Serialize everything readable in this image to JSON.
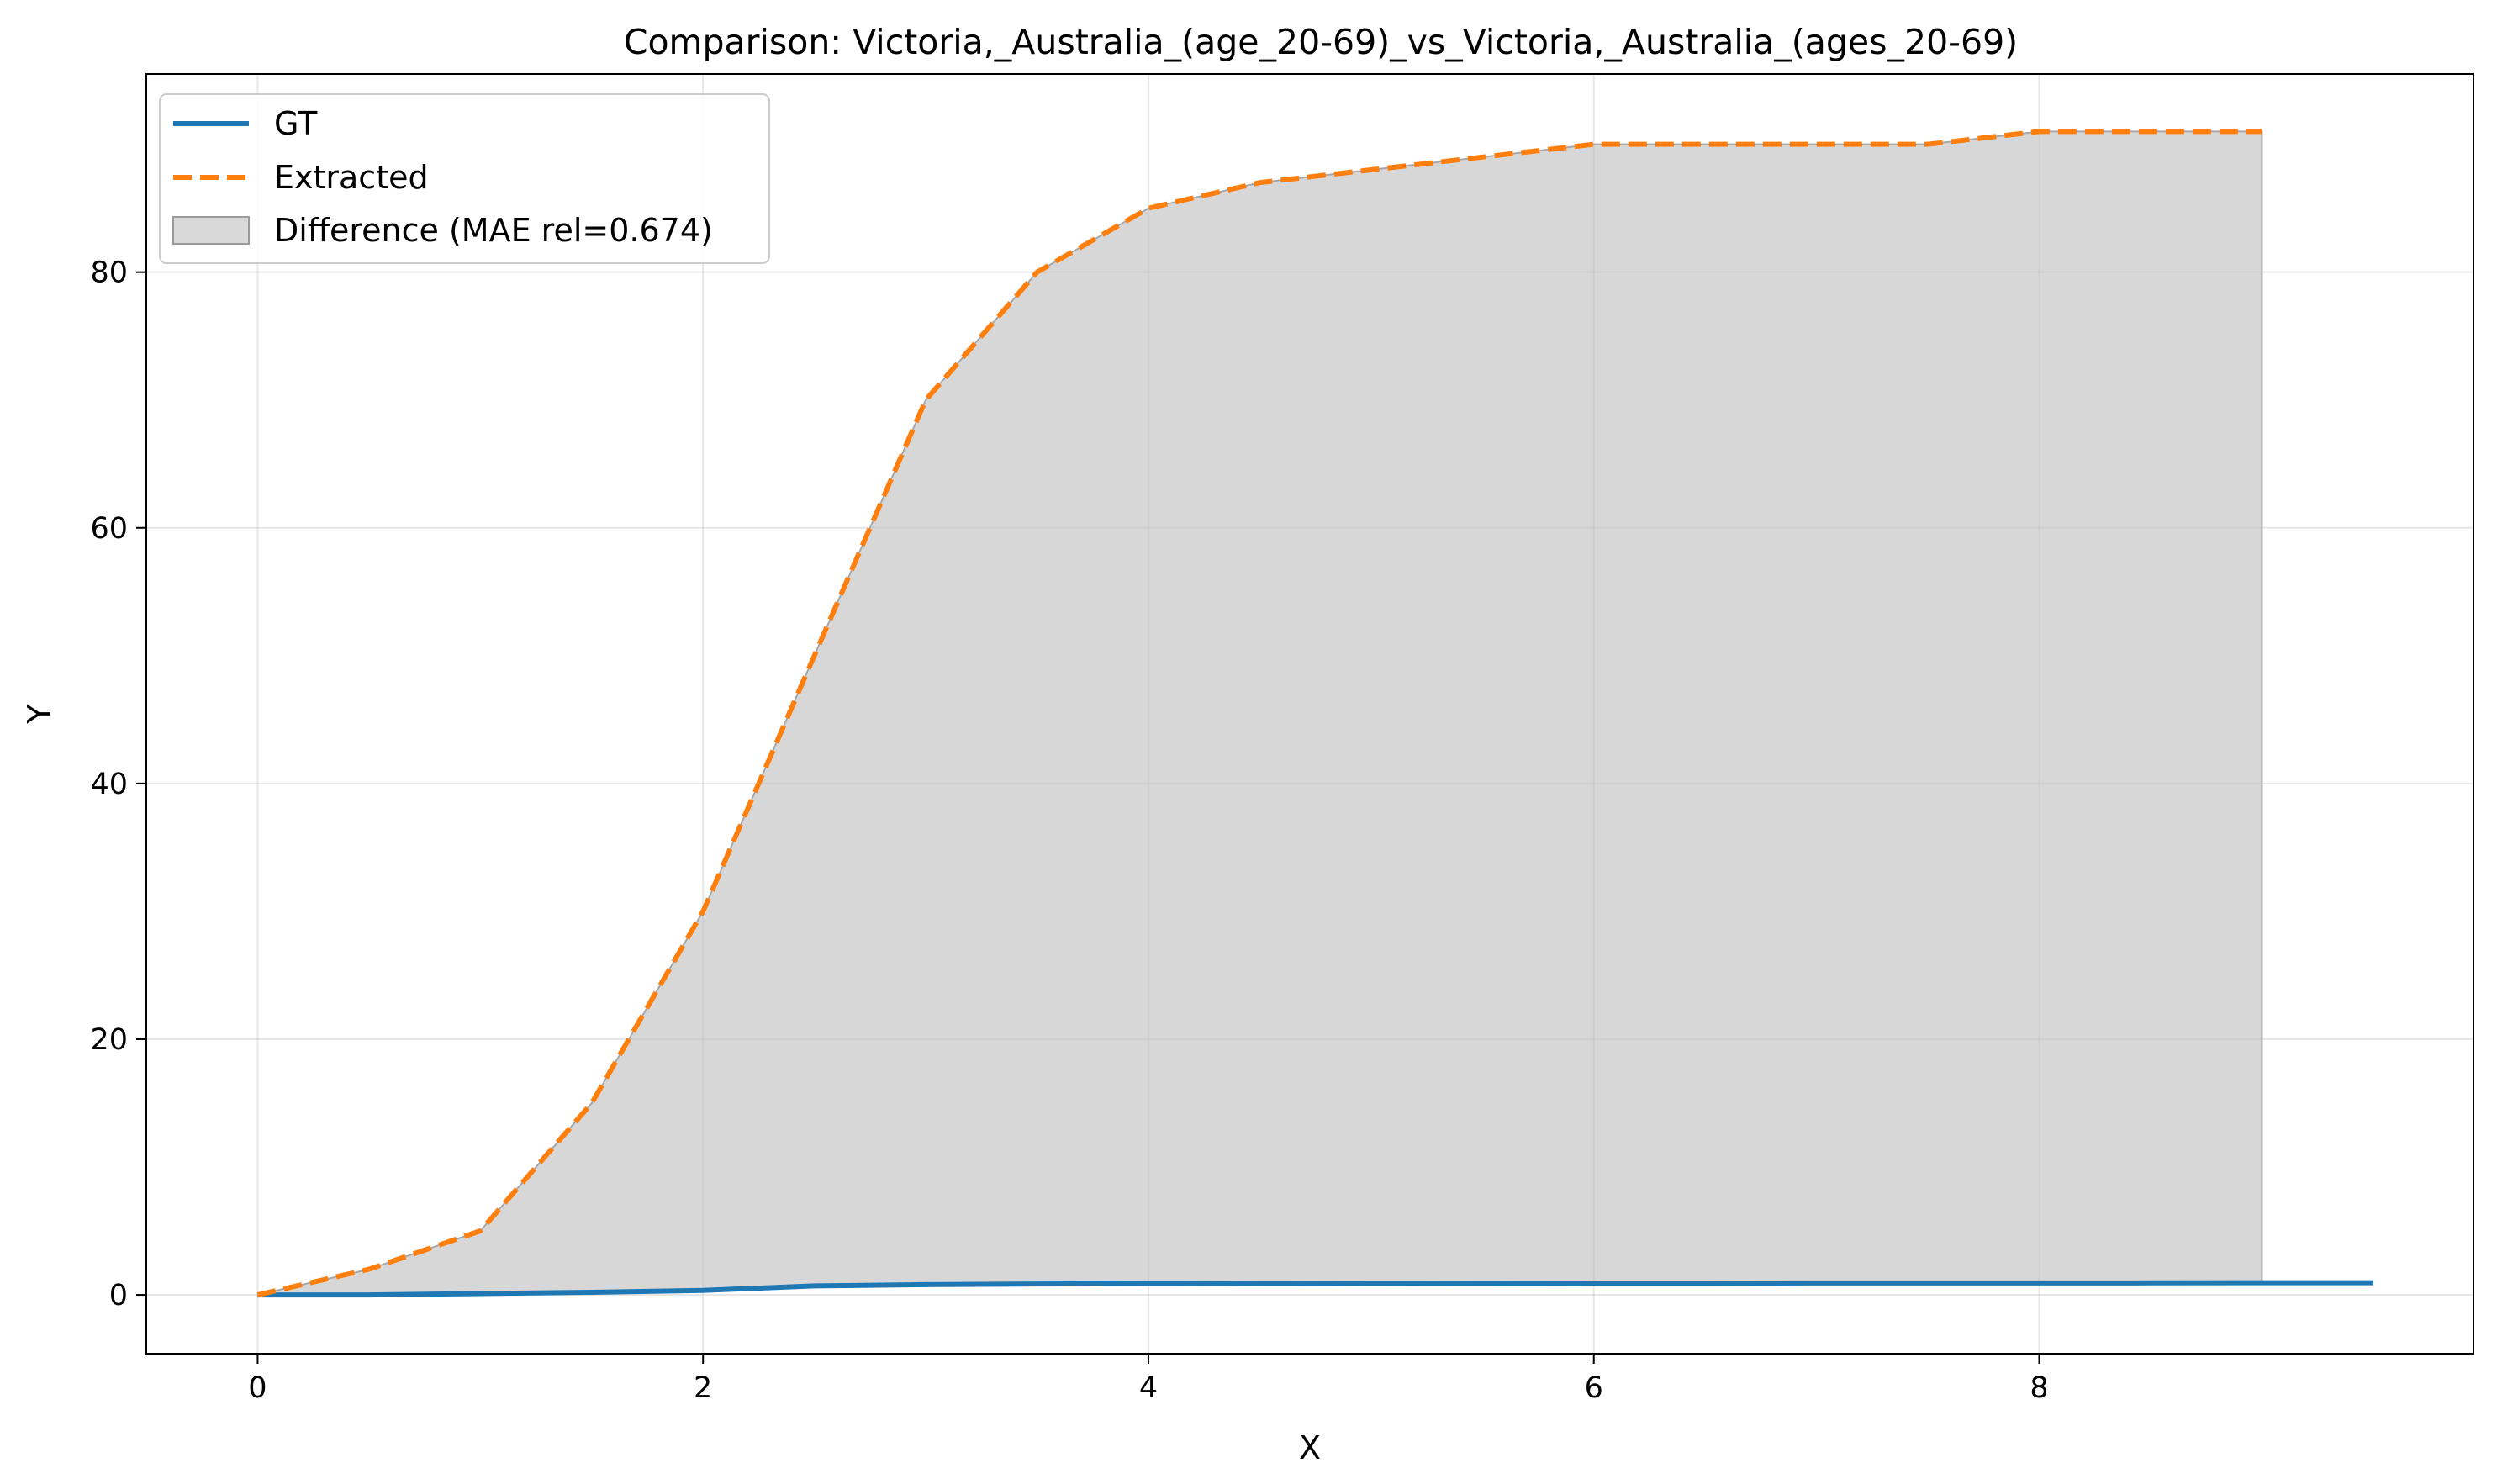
{
  "chart_data": {
    "type": "line",
    "title": "Comparison: Victoria,_Australia_(age_20-69)_vs_Victoria,_Australia_(ages_20-69)",
    "xlabel": "X",
    "ylabel": "Y",
    "xlim": [
      -0.5,
      9.95
    ],
    "ylim": [
      -4.6,
      95.5
    ],
    "xticks": [
      0,
      2,
      4,
      6,
      8
    ],
    "yticks": [
      0,
      20,
      40,
      60,
      80
    ],
    "grid": true,
    "legend_position": "upper-left",
    "series": [
      {
        "name": "GT",
        "style": "solid",
        "color": "#1f77b4",
        "x": [
          0,
          0.5,
          1,
          1.5,
          2,
          2.5,
          3,
          3.5,
          4,
          4.5,
          5,
          5.5,
          6,
          6.5,
          7,
          7.5,
          8,
          8.5,
          9,
          9.5
        ],
        "y": [
          0,
          0,
          0.1,
          0.2,
          0.35,
          0.7,
          0.8,
          0.85,
          0.87,
          0.89,
          0.9,
          0.91,
          0.92,
          0.92,
          0.93,
          0.93,
          0.93,
          0.94,
          0.95,
          0.95
        ]
      },
      {
        "name": "Extracted",
        "style": "dashed",
        "color": "#ff7f0e",
        "x": [
          0,
          0.5,
          1,
          1.5,
          2,
          2.5,
          3,
          3.5,
          4,
          4.5,
          5,
          5.5,
          6,
          6.5,
          7,
          7.5,
          8,
          8.5,
          9
        ],
        "y": [
          0,
          2,
          5,
          15,
          30,
          50,
          70,
          80,
          85,
          87,
          88,
          89,
          90,
          90,
          90,
          90,
          91,
          91,
          91
        ]
      }
    ],
    "difference": {
      "name": "Difference (MAE rel=0.674)",
      "color": "#bfbfbf"
    }
  }
}
